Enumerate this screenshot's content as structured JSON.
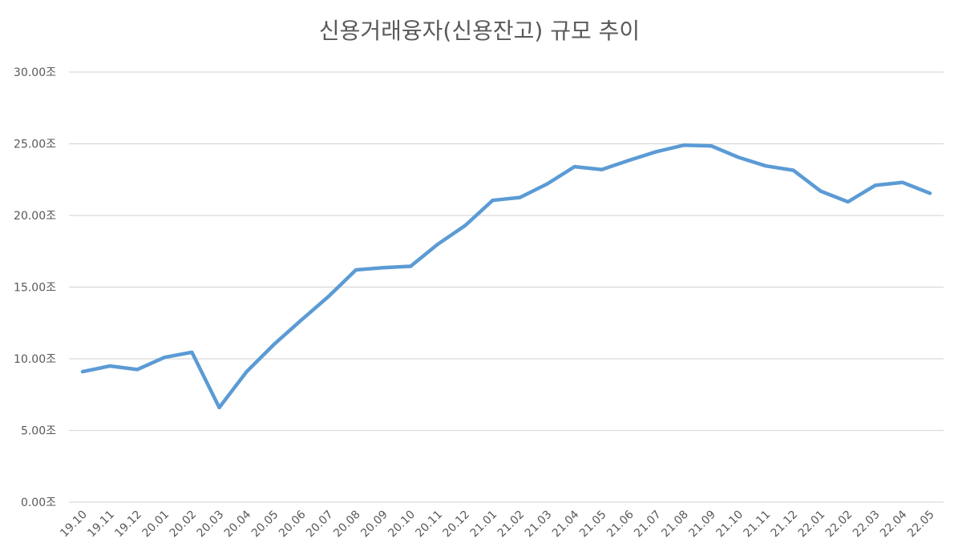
{
  "chart_data": {
    "type": "line",
    "title": "신용거래융자(신용잔고) 규모 추이",
    "xlabel": "",
    "ylabel": "",
    "ylim": [
      0,
      30
    ],
    "grid": true,
    "yticks": [
      "0.00조",
      "5.00조",
      "10.00조",
      "15.00조",
      "20.00조",
      "25.00조",
      "30.00조"
    ],
    "categories": [
      "19.10",
      "19.11",
      "19.12",
      "20.01",
      "20.02",
      "20.03",
      "20.04",
      "20.05",
      "20.06",
      "20.07",
      "20.08",
      "20.09",
      "20.10",
      "20.11",
      "20.12",
      "21.01",
      "21.02",
      "21.03",
      "21.04",
      "21.05",
      "21.06",
      "21.07",
      "21.08",
      "21.09",
      "21.10",
      "21.11",
      "21.12",
      "22.01",
      "22.02",
      "22.03",
      "22.04",
      "22.05"
    ],
    "series": [
      {
        "color": "#5b9bd5",
        "values": [
          9.1,
          9.5,
          9.25,
          10.1,
          10.45,
          6.6,
          9.1,
          11.0,
          12.7,
          14.35,
          16.2,
          16.35,
          16.45,
          18.0,
          19.3,
          21.05,
          21.25,
          22.2,
          23.4,
          23.2,
          23.85,
          24.45,
          24.9,
          24.85,
          24.05,
          23.45,
          23.15,
          21.7,
          20.95,
          22.1,
          22.3,
          21.55
        ]
      }
    ]
  }
}
